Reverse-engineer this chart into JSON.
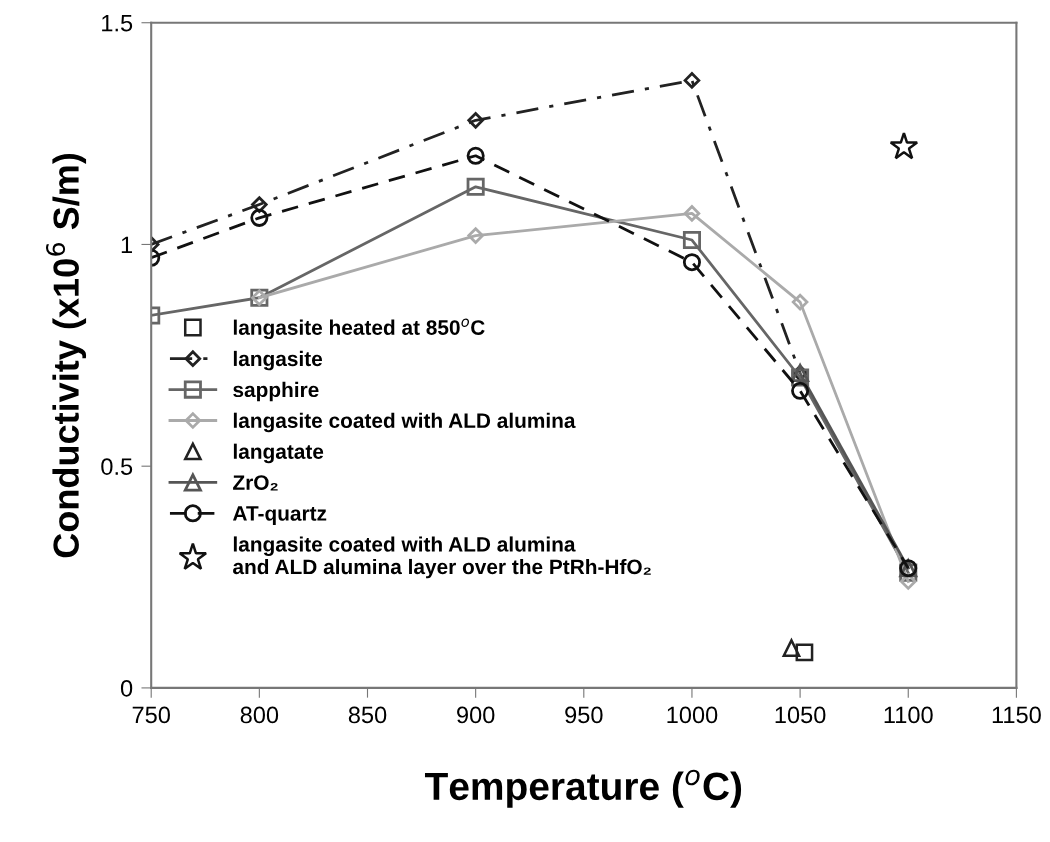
{
  "chart_data": {
    "type": "line",
    "xlabel": "Temperature ($^{o}$C)",
    "ylabel": "Conductivity (x10$^{6}$ S/m)",
    "xlim": [
      750,
      1150
    ],
    "xticks": [
      750,
      800,
      850,
      900,
      950,
      1000,
      1050,
      1100,
      1150
    ],
    "ylim": [
      0,
      1.5
    ],
    "yticks": [
      0,
      0.5,
      1,
      1.5
    ],
    "grid": false,
    "legend": "left",
    "series": [
      {
        "name": "langasite heated at 850$^{o}$C",
        "type": "scatter",
        "color": "#222222",
        "marker": "square",
        "x": [
          1052
        ],
        "values": [
          0.08
        ]
      },
      {
        "name": "langasite",
        "color": "#222222",
        "marker": "diamond",
        "line_style": "dashdot",
        "x": [
          750,
          800,
          900,
          1000,
          1050
        ],
        "values": [
          1.0,
          1.09,
          1.28,
          1.37,
          0.71
        ]
      },
      {
        "name": "sapphire",
        "color": "#666666",
        "marker": "square",
        "line_style": "solid",
        "x": [
          750,
          800,
          900,
          1000,
          1050,
          1100
        ],
        "values": [
          0.84,
          0.88,
          1.13,
          1.01,
          0.7,
          0.26
        ]
      },
      {
        "name": "langasite coated with ALD alumina",
        "color": "#aaaaaa",
        "marker": "diamond",
        "line_style": "solid",
        "x": [
          800,
          900,
          1000,
          1050,
          1100
        ],
        "values": [
          0.88,
          1.02,
          1.07,
          0.87,
          0.24
        ]
      },
      {
        "name": "langatate",
        "type": "scatter",
        "color": "#222222",
        "marker": "triangle",
        "x": [
          1046
        ],
        "values": [
          0.09
        ]
      },
      {
        "name": "ZrO₂",
        "color": "#555555",
        "marker": "triangle",
        "line_style": "solid",
        "x": [
          1050,
          1100
        ],
        "values": [
          0.71,
          0.27
        ]
      },
      {
        "name": "AT-quartz",
        "color": "#111111",
        "marker": "circle",
        "line_style": "dashed",
        "x": [
          750,
          800,
          900,
          1000,
          1050,
          1100
        ],
        "values": [
          0.97,
          1.06,
          1.2,
          0.96,
          0.67,
          0.27
        ]
      },
      {
        "name": "langasite coated with ALD alumina\nand ALD alumina layer over the PtRh-HfO₂",
        "type": "scatter",
        "color": "#111111",
        "marker": "star",
        "x": [
          1098
        ],
        "values": [
          1.22
        ]
      }
    ]
  }
}
